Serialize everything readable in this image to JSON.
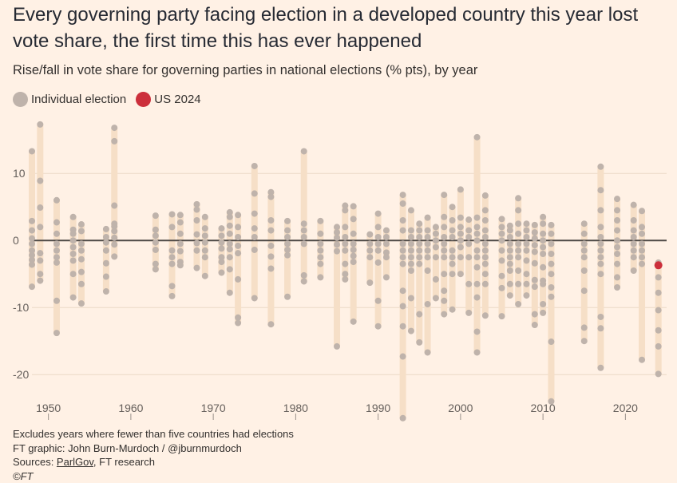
{
  "title": "Every governing party facing election in a developed country this year lost vote share, the first time this has ever happened",
  "subtitle": "Rise/fall in vote share for governing parties in national elections (% pts), by year",
  "legend": {
    "individual": "Individual election",
    "us": "US 2024"
  },
  "colors": {
    "background": "#fff1e5",
    "range_bar": "#f6dfc7",
    "dot": "#bfb3ab",
    "highlight": "#cc2f3b",
    "zero_line": "#4d4845",
    "grid": "#ecd9c7"
  },
  "footer": {
    "note": "Excludes years where fewer than five countries had elections",
    "credit": "FT graphic: John Burn-Murdoch / @jburnmurdoch",
    "sources_prefix": "Sources: ",
    "sources_link": "ParlGov",
    "sources_suffix": ", FT research",
    "copyright": "©FT"
  },
  "chart_data": {
    "type": "scatter",
    "title": "Every governing party facing election in a developed country this year lost vote share, the first time this has ever happened",
    "subtitle": "Rise/fall in vote share for governing parties in national elections (% pts), by year",
    "xlim": [
      1948,
      2025
    ],
    "ylim": [
      -27,
      18
    ],
    "x_ticks": [
      1950,
      1960,
      1970,
      1980,
      1990,
      2000,
      2010,
      2020
    ],
    "y_ticks": [
      10,
      0,
      -10,
      -20
    ],
    "grid": "horizontal",
    "series": [
      {
        "name": "Individual election",
        "points": [
          {
            "year": 1948,
            "values": [
              13.3,
              2.9,
              1.5,
              0.3,
              -0.5,
              -1.5,
              -2.2,
              -2.9,
              -3.6,
              -6.9
            ]
          },
          {
            "year": 1949,
            "values": [
              17.3,
              8.9,
              4.9,
              2.0,
              -1.9,
              -3.0,
              -5.0,
              -6.0
            ]
          },
          {
            "year": 1951,
            "values": [
              6.0,
              2.7,
              1.0,
              -0.5,
              -1.5,
              -2.5,
              -3.3,
              -9.0,
              -13.8
            ]
          },
          {
            "year": 1953,
            "values": [
              3.5,
              1.6,
              1.0,
              0.0,
              -1.0,
              -2.0,
              -3.0,
              -5.0,
              -8.5
            ]
          },
          {
            "year": 1954,
            "values": [
              2.4,
              1.4,
              -0.5,
              -1.5,
              -2.8,
              -4.7,
              -6.5,
              -9.4
            ]
          },
          {
            "year": 1957,
            "values": [
              1.7,
              0.5,
              -0.3,
              -1.5,
              -3.4,
              -5.4,
              -7.6
            ]
          },
          {
            "year": 1958,
            "values": [
              16.8,
              14.8,
              5.2,
              2.5,
              2.1,
              1.4,
              0.4,
              -0.6,
              -2.4
            ]
          },
          {
            "year": 1963,
            "values": [
              3.7,
              1.6,
              0.7,
              -0.3,
              -1.4,
              -3.5,
              -4.3
            ]
          },
          {
            "year": 1965,
            "values": [
              3.9,
              2.0,
              -1.5,
              -2.5,
              -3.5,
              -6.8,
              -8.3
            ]
          },
          {
            "year": 1966,
            "values": [
              3.8,
              2.7,
              1.0,
              -0.5,
              -1.6,
              -3.2,
              -3.7
            ]
          },
          {
            "year": 1968,
            "values": [
              5.4,
              4.6,
              3.0,
              0.9,
              -0.4,
              -1.5,
              -4.1
            ]
          },
          {
            "year": 1969,
            "values": [
              3.5,
              1.8,
              0.7,
              -0.3,
              -1.5,
              -2.5,
              -5.3
            ]
          },
          {
            "year": 1971,
            "values": [
              1.8,
              0.7,
              -0.3,
              -1.2,
              -2.5,
              -3.2,
              -4.8
            ]
          },
          {
            "year": 1972,
            "values": [
              4.2,
              3.5,
              2.2,
              1.0,
              -0.5,
              -1.3,
              -2.5,
              -4.3,
              -7.8
            ]
          },
          {
            "year": 1973,
            "values": [
              3.8,
              2.0,
              0.5,
              -0.8,
              -1.9,
              -5.8,
              -11.5,
              -12.3
            ]
          },
          {
            "year": 1975,
            "values": [
              11.1,
              7.0,
              4.0,
              1.8,
              0.5,
              -1.4,
              -8.6
            ]
          },
          {
            "year": 1977,
            "values": [
              7.2,
              6.5,
              3.0,
              1.5,
              -0.8,
              -2.4,
              -4.2,
              -12.5
            ]
          },
          {
            "year": 1979,
            "values": [
              2.9,
              1.5,
              0.5,
              -0.5,
              -1.4,
              -2.2,
              -8.4
            ]
          },
          {
            "year": 1981,
            "values": [
              13.3,
              2.5,
              1.5,
              0.5,
              -0.5,
              -5.2,
              -6.1
            ]
          },
          {
            "year": 1983,
            "values": [
              2.9,
              1.0,
              -0.5,
              -1.5,
              -2.5,
              -3.5,
              -5.5
            ]
          },
          {
            "year": 1985,
            "values": [
              2.0,
              1.2,
              0.4,
              -0.6,
              -1.6,
              -15.8
            ]
          },
          {
            "year": 1986,
            "values": [
              5.2,
              4.5,
              2.0,
              0.5,
              -0.5,
              -1.5,
              -3.5,
              -5.0,
              -5.8
            ]
          },
          {
            "year": 1987,
            "values": [
              5.1,
              3.2,
              1.0,
              -0.5,
              -1.4,
              -2.3,
              -3.2,
              -12.1
            ]
          },
          {
            "year": 1989,
            "values": [
              0.9,
              -0.5,
              -1.5,
              -2.5,
              -6.3
            ]
          },
          {
            "year": 1990,
            "values": [
              4.0,
              2.0,
              0.5,
              -0.5,
              -1.5,
              -3.3,
              -9.0,
              -12.8
            ]
          },
          {
            "year": 1991,
            "values": [
              1.5,
              0.5,
              -0.5,
              -1.8,
              -2.5,
              -5.5
            ]
          },
          {
            "year": 1993,
            "values": [
              6.8,
              5.5,
              3.0,
              1.5,
              -0.5,
              -1.5,
              -2.5,
              -3.5,
              -7.5,
              -9.8,
              -12.8,
              -17.3,
              -26.5
            ]
          },
          {
            "year": 1994,
            "values": [
              4.5,
              1.5,
              0.5,
              -0.5,
              -1.5,
              -2.5,
              -3.5,
              -4.5,
              -8.6,
              -13.5
            ]
          },
          {
            "year": 1995,
            "values": [
              2.5,
              1.5,
              0.5,
              -0.5,
              -1.5,
              -2.5,
              -3.5,
              -11.0,
              -15.2
            ]
          },
          {
            "year": 1996,
            "values": [
              3.4,
              1.5,
              0.5,
              -0.5,
              -1.5,
              -2.5,
              -4.5,
              -9.5,
              -16.7
            ]
          },
          {
            "year": 1997,
            "values": [
              2.0,
              1.0,
              0.0,
              -1.0,
              -2.5,
              -5.8,
              -8.6
            ]
          },
          {
            "year": 1998,
            "values": [
              6.8,
              3.5,
              2.0,
              0.5,
              -0.5,
              -1.5,
              -2.5,
              -5.0,
              -7.5,
              -9.0,
              -11.0
            ]
          },
          {
            "year": 1999,
            "values": [
              5.0,
              3.0,
              1.5,
              0.5,
              -1.5,
              -2.5,
              -3.5,
              -5.0,
              -10.3
            ]
          },
          {
            "year": 2000,
            "values": [
              7.6,
              3.4,
              2.0,
              1.0,
              0.0,
              -1.0,
              -2.5,
              -5.0
            ]
          },
          {
            "year": 2001,
            "values": [
              3.1,
              1.5,
              0.5,
              -0.5,
              -2.5,
              -6.5,
              -10.8
            ]
          },
          {
            "year": 2002,
            "values": [
              15.4,
              3.4,
              2.0,
              1.0,
              0.0,
              -1.5,
              -2.5,
              -4.0,
              -6.5,
              -8.5,
              -13.6,
              -16.7
            ]
          },
          {
            "year": 2003,
            "values": [
              6.7,
              4.5,
              3.0,
              1.5,
              0.5,
              -0.5,
              -1.5,
              -2.5,
              -3.5,
              -5.0,
              -6.5,
              -11.2
            ]
          },
          {
            "year": 2005,
            "values": [
              3.2,
              2.0,
              1.0,
              0.0,
              -1.5,
              -3.0,
              -5.3,
              -7.1,
              -11.3
            ]
          },
          {
            "year": 2006,
            "values": [
              2.2,
              1.5,
              0.5,
              -0.5,
              -1.5,
              -2.5,
              -3.5,
              -4.5,
              -6.5,
              -8.2
            ]
          },
          {
            "year": 2007,
            "values": [
              6.3,
              4.5,
              2.5,
              1.0,
              -0.5,
              -1.5,
              -2.5,
              -4.5,
              -6.5,
              -9.5
            ]
          },
          {
            "year": 2008,
            "values": [
              2.5,
              1.5,
              0.5,
              -0.5,
              -1.5,
              -3.0,
              -5.0,
              -6.5,
              -8.2
            ]
          },
          {
            "year": 2009,
            "values": [
              2.3,
              1.2,
              0.3,
              -0.7,
              -1.7,
              -3.4,
              -5.9,
              -6.9,
              -11.0,
              -12.6
            ]
          },
          {
            "year": 2010,
            "values": [
              3.5,
              2.5,
              1.0,
              0.0,
              -1.0,
              -2.0,
              -4.0,
              -6.0,
              -6.5,
              -9.5,
              -10.8
            ]
          },
          {
            "year": 2011,
            "values": [
              2.3,
              1.0,
              -0.5,
              -2.0,
              -3.5,
              -5.0,
              -7.0,
              -8.4,
              -15.1,
              -24.0
            ]
          },
          {
            "year": 2015,
            "values": [
              2.5,
              1.0,
              -0.5,
              -1.5,
              -2.5,
              -4.5,
              -7.5,
              -13.0,
              -15.0
            ]
          },
          {
            "year": 2017,
            "values": [
              11.0,
              7.5,
              4.5,
              2.0,
              0.5,
              -0.5,
              -1.5,
              -2.5,
              -3.5,
              -5.0,
              -11.4,
              -13.1,
              -19.0
            ]
          },
          {
            "year": 2019,
            "values": [
              6.2,
              4.5,
              3.0,
              1.5,
              0.0,
              -1.0,
              -2.0,
              -3.5,
              -5.5,
              -7.0
            ]
          },
          {
            "year": 2021,
            "values": [
              5.3,
              3.0,
              1.5,
              0.5,
              -0.5,
              -1.5,
              -2.5,
              -4.5
            ]
          },
          {
            "year": 2022,
            "values": [
              4.4,
              2.0,
              1.0,
              -0.5,
              -1.5,
              -2.5,
              -3.5,
              -17.8
            ]
          },
          {
            "year": 2024,
            "values": [
              -3.3,
              -5.5,
              -7.8,
              -10.4,
              -13.4,
              -15.8,
              -19.9
            ]
          }
        ]
      },
      {
        "name": "US 2024",
        "points": [
          {
            "year": 2024,
            "value": -3.7
          }
        ]
      }
    ]
  }
}
